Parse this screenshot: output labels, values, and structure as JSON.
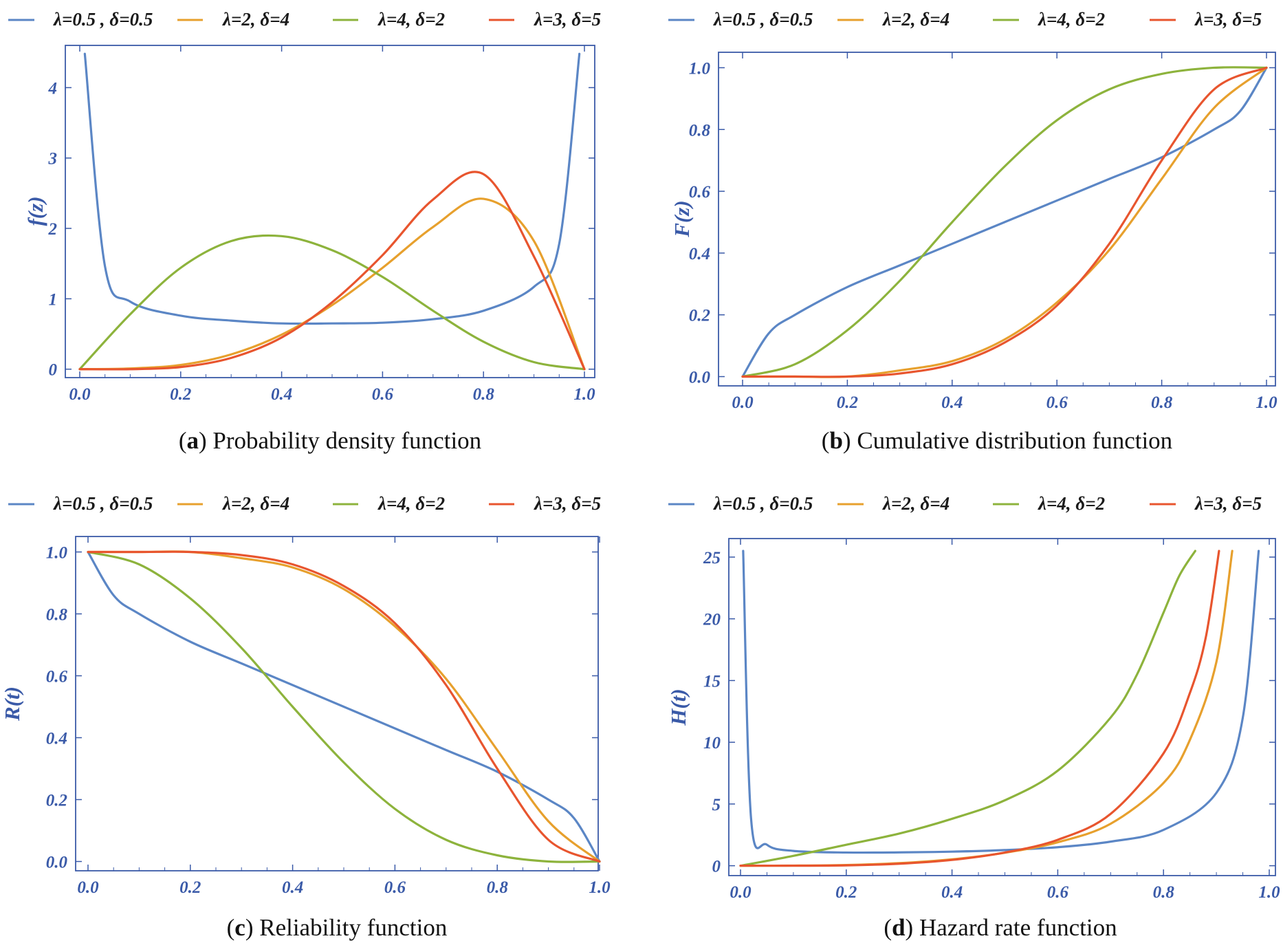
{
  "series_styles": [
    {
      "name": "λ=0.5 , δ=0.5",
      "lambda": 0.5,
      "delta": 0.5,
      "color": "#5b86c5"
    },
    {
      "name": "λ=2, δ=4",
      "lambda": 2,
      "delta": 4,
      "color": "#e7a02d"
    },
    {
      "name": "λ=4, δ=2",
      "lambda": 4,
      "delta": 2,
      "color": "#8db33c"
    },
    {
      "name": "λ=3, δ=5",
      "lambda": 3,
      "delta": 5,
      "color": "#e8552e"
    }
  ],
  "axis_color": "#3a5aa8",
  "chart_data": [
    {
      "type": "line",
      "id": "a",
      "func": "pdf",
      "title": "Probability density function",
      "caption_letter": "a",
      "xlabel": "",
      "ylabel": "f(z)",
      "xlim": [
        0,
        1
      ],
      "ylim": [
        -0.12,
        4.6
      ],
      "xticks": [
        0.0,
        0.2,
        0.4,
        0.6,
        0.8,
        1.0
      ],
      "xtick_labels": [
        "0.0",
        "0.2",
        "0.4",
        "0.6",
        "0.8",
        "1.0"
      ],
      "yticks": [
        0,
        1,
        2,
        3,
        4
      ],
      "ytick_labels": [
        "0",
        "1",
        "2",
        "3",
        "4"
      ],
      "legend": [
        "λ=0.5 , δ=0.5",
        "λ=2, δ=4",
        "λ=4, δ=2",
        "λ=3, δ=5"
      ],
      "series": [
        {
          "name": "λ=0.5 , δ=0.5",
          "x": [
            0.01,
            0.05,
            0.1,
            0.2,
            0.3,
            0.4,
            0.5,
            0.6,
            0.7,
            0.8,
            0.9,
            0.95,
            0.99
          ],
          "values": [
            4.48,
            1.46,
            0.96,
            0.76,
            0.69,
            0.65,
            0.65,
            0.66,
            0.71,
            0.83,
            1.17,
            1.78,
            4.48
          ]
        },
        {
          "name": "λ=2, δ=4",
          "x": [
            0,
            0.1,
            0.2,
            0.3,
            0.4,
            0.5,
            0.6,
            0.7,
            0.8,
            0.9,
            1.0
          ],
          "values": [
            0,
            0.01,
            0.06,
            0.21,
            0.49,
            0.91,
            1.44,
            2.02,
            2.42,
            1.82,
            0
          ]
        },
        {
          "name": "λ=4, δ=2",
          "x": [
            0,
            0.1,
            0.2,
            0.3,
            0.4,
            0.5,
            0.6,
            0.7,
            0.8,
            0.9,
            1.0
          ],
          "values": [
            0,
            0.78,
            1.44,
            1.82,
            1.89,
            1.69,
            1.31,
            0.83,
            0.39,
            0.1,
            0
          ]
        },
        {
          "name": "λ=3, δ=5",
          "x": [
            0,
            0.1,
            0.2,
            0.3,
            0.4,
            0.5,
            0.6,
            0.7,
            0.8,
            0.9,
            1.0
          ],
          "values": [
            0,
            0.0,
            0.03,
            0.16,
            0.45,
            0.95,
            1.62,
            2.41,
            2.77,
            1.6,
            0
          ]
        }
      ]
    },
    {
      "type": "line",
      "id": "b",
      "func": "cdf",
      "title": "Cumulative distribution function",
      "caption_letter": "b",
      "xlabel": "",
      "ylabel": "F(z)",
      "xlim": [
        0,
        1
      ],
      "ylim": [
        -0.03,
        1.05
      ],
      "xticks": [
        0.0,
        0.2,
        0.4,
        0.6,
        0.8,
        1.0
      ],
      "xtick_labels": [
        "0.0",
        "0.2",
        "0.4",
        "0.6",
        "0.8",
        "1.0"
      ],
      "yticks": [
        0,
        0.2,
        0.4,
        0.6,
        0.8,
        1.0
      ],
      "ytick_labels": [
        "0.0",
        "0.2",
        "0.4",
        "0.6",
        "0.8",
        "1.0"
      ],
      "legend": [
        "λ=0.5 , δ=0.5",
        "λ=2, δ=4",
        "λ=4, δ=2",
        "λ=3, δ=5"
      ],
      "series": [
        {
          "name": "λ=0.5 , δ=0.5",
          "x": [
            0,
            0.05,
            0.1,
            0.2,
            0.3,
            0.4,
            0.5,
            0.6,
            0.7,
            0.8,
            0.9,
            0.95,
            1.0
          ],
          "values": [
            0,
            0.14,
            0.2,
            0.29,
            0.36,
            0.43,
            0.5,
            0.57,
            0.64,
            0.71,
            0.8,
            0.86,
            1.0
          ]
        },
        {
          "name": "λ=2, δ=4",
          "x": [
            0,
            0.1,
            0.2,
            0.3,
            0.4,
            0.5,
            0.6,
            0.7,
            0.8,
            0.9,
            1.0
          ],
          "values": [
            0,
            0.0,
            0.0,
            0.02,
            0.05,
            0.12,
            0.24,
            0.41,
            0.64,
            0.87,
            1.0
          ]
        },
        {
          "name": "λ=4, δ=2",
          "x": [
            0,
            0.1,
            0.2,
            0.3,
            0.4,
            0.5,
            0.6,
            0.7,
            0.8,
            0.9,
            1.0
          ],
          "values": [
            0,
            0.04,
            0.15,
            0.31,
            0.5,
            0.68,
            0.83,
            0.93,
            0.98,
            1.0,
            1.0
          ]
        },
        {
          "name": "λ=3, δ=5",
          "x": [
            0,
            0.1,
            0.2,
            0.3,
            0.4,
            0.5,
            0.6,
            0.7,
            0.8,
            0.9,
            1.0
          ],
          "values": [
            0,
            0.0,
            0.0,
            0.01,
            0.04,
            0.11,
            0.23,
            0.43,
            0.7,
            0.93,
            1.0
          ]
        }
      ]
    },
    {
      "type": "line",
      "id": "c",
      "func": "rel",
      "title": "Reliability function",
      "caption_letter": "c",
      "xlabel": "",
      "ylabel": "R(t)",
      "xlim": [
        0,
        1
      ],
      "ylim": [
        -0.03,
        1.05
      ],
      "xticks": [
        0.0,
        0.2,
        0.4,
        0.6,
        0.8,
        1.0
      ],
      "xtick_labels": [
        "0.0",
        "0.2",
        "0.4",
        "0.6",
        "0.8",
        "1.0"
      ],
      "yticks": [
        0,
        0.2,
        0.4,
        0.6,
        0.8,
        1.0
      ],
      "ytick_labels": [
        "0.0",
        "0.2",
        "0.4",
        "0.6",
        "0.8",
        "1.0"
      ],
      "legend": [
        "λ=0.5 , δ=0.5",
        "λ=2, δ=4",
        "λ=4, δ=2",
        "λ=3, δ=5"
      ],
      "series": [
        {
          "name": "λ=0.5 , δ=0.5",
          "x": [
            0,
            0.05,
            0.1,
            0.2,
            0.3,
            0.4,
            0.5,
            0.6,
            0.7,
            0.8,
            0.9,
            0.95,
            1.0
          ],
          "values": [
            1.0,
            0.86,
            0.8,
            0.71,
            0.64,
            0.57,
            0.5,
            0.43,
            0.36,
            0.29,
            0.2,
            0.14,
            0
          ]
        },
        {
          "name": "λ=2, δ=4",
          "x": [
            0,
            0.1,
            0.2,
            0.3,
            0.4,
            0.5,
            0.6,
            0.7,
            0.8,
            0.9,
            1.0
          ],
          "values": [
            1.0,
            1.0,
            1.0,
            0.98,
            0.95,
            0.88,
            0.76,
            0.59,
            0.36,
            0.13,
            0
          ]
        },
        {
          "name": "λ=4, δ=2",
          "x": [
            0,
            0.1,
            0.2,
            0.3,
            0.4,
            0.5,
            0.6,
            0.7,
            0.8,
            0.9,
            1.0
          ],
          "values": [
            1.0,
            0.96,
            0.85,
            0.69,
            0.5,
            0.32,
            0.17,
            0.07,
            0.02,
            0.0,
            0
          ]
        },
        {
          "name": "λ=3, δ=5",
          "x": [
            0,
            0.1,
            0.2,
            0.3,
            0.4,
            0.5,
            0.6,
            0.7,
            0.8,
            0.9,
            1.0
          ],
          "values": [
            1.0,
            1.0,
            1.0,
            0.99,
            0.96,
            0.89,
            0.77,
            0.57,
            0.3,
            0.07,
            0
          ]
        }
      ]
    },
    {
      "type": "line",
      "id": "d",
      "func": "haz",
      "title": "Hazard rate function",
      "caption_letter": "d",
      "xlabel": "",
      "ylabel": "H(t)",
      "xlim": [
        0,
        1
      ],
      "ylim": [
        -0.8,
        26.5
      ],
      "xticks": [
        0.0,
        0.2,
        0.4,
        0.6,
        0.8,
        1.0
      ],
      "xtick_labels": [
        "0.0",
        "0.2",
        "0.4",
        "0.6",
        "0.8",
        "1.0"
      ],
      "yticks": [
        0,
        5,
        10,
        15,
        20,
        25
      ],
      "ytick_labels": [
        "0",
        "5",
        "10",
        "15",
        "20",
        "25"
      ],
      "legend": [
        "λ=0.5 , δ=0.5",
        "λ=2, δ=4",
        "λ=4, δ=2",
        "λ=3, δ=5"
      ],
      "series": [
        {
          "name": "λ=0.5 , δ=0.5",
          "x": [
            0.005,
            0.02,
            0.05,
            0.1,
            0.2,
            0.3,
            0.4,
            0.5,
            0.6,
            0.7,
            0.8,
            0.9,
            0.95,
            0.98
          ],
          "values": [
            25.5,
            3.8,
            1.7,
            1.2,
            1.07,
            1.08,
            1.14,
            1.27,
            1.5,
            1.95,
            2.9,
            5.9,
            12.0,
            25.5
          ]
        },
        {
          "name": "λ=2, δ=4",
          "x": [
            0,
            0.1,
            0.2,
            0.3,
            0.4,
            0.5,
            0.6,
            0.7,
            0.8,
            0.85,
            0.9,
            0.93
          ],
          "values": [
            0,
            0.01,
            0.06,
            0.21,
            0.52,
            1.05,
            1.9,
            3.4,
            6.7,
            10.2,
            16.5,
            25.5
          ]
        },
        {
          "name": "λ=4, δ=2",
          "x": [
            0,
            0.1,
            0.2,
            0.3,
            0.4,
            0.5,
            0.6,
            0.7,
            0.75,
            0.8,
            0.83,
            0.86
          ],
          "values": [
            0,
            0.8,
            1.7,
            2.6,
            3.8,
            5.3,
            7.7,
            12.0,
            15.5,
            20.5,
            23.5,
            25.5
          ]
        },
        {
          "name": "λ=3, δ=5",
          "x": [
            0,
            0.1,
            0.2,
            0.3,
            0.4,
            0.5,
            0.6,
            0.7,
            0.8,
            0.85,
            0.88,
            0.905
          ],
          "values": [
            0,
            0.0,
            0.03,
            0.16,
            0.47,
            1.07,
            2.1,
            4.2,
            9.1,
            14.0,
            18.5,
            25.5
          ]
        }
      ]
    }
  ]
}
